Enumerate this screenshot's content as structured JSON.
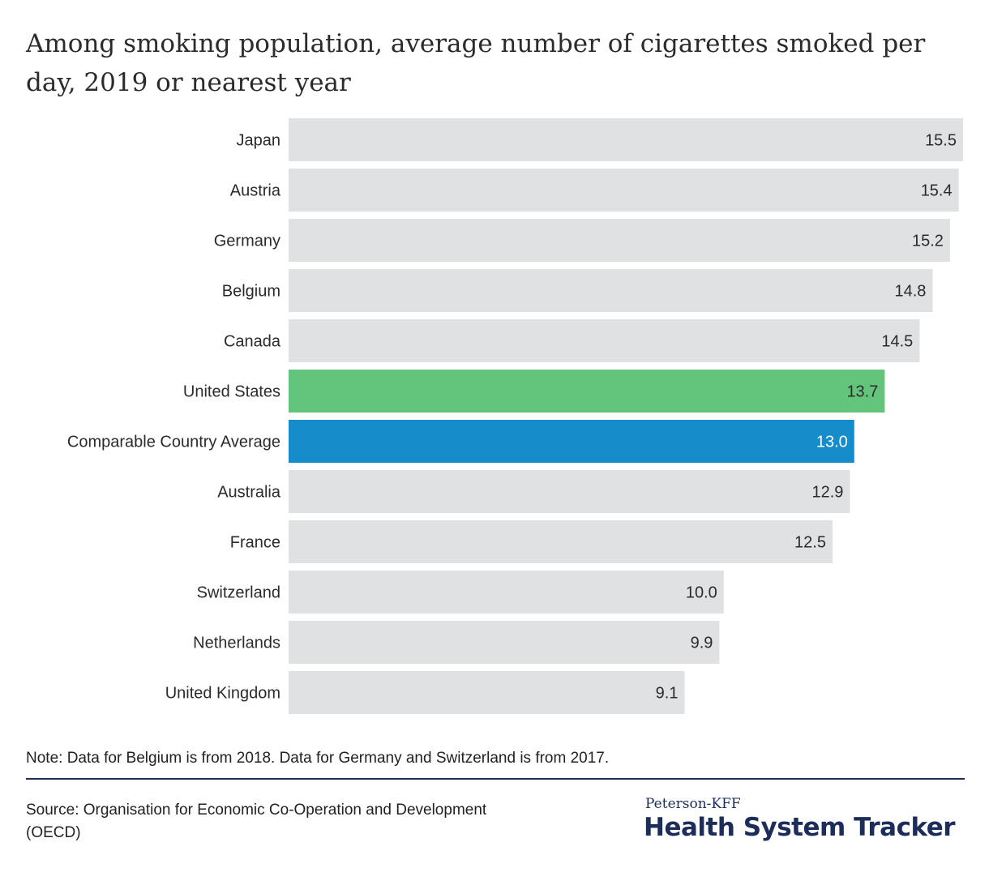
{
  "title": "Among smoking population, average number of cigarettes smoked per day, 2019 or nearest year",
  "note": "Note: Data for Belgium is from 2018. Data for Germany and Switzerland is from 2017.",
  "source": "Source: Organisation for Economic Co-Operation and Development (OECD)",
  "logo": {
    "top": "Peterson-KFF",
    "main": "Health System Tracker"
  },
  "colors": {
    "default_bar": "#dfe1e3",
    "us_bar": "#63c57b",
    "average_bar": "#168ccb",
    "label_text": "#2b2b2b",
    "value_text": "#2b2b2b",
    "value_text_on_dark": "#ffffff"
  },
  "chart_data": {
    "type": "bar",
    "orientation": "horizontal",
    "categories": [
      "Japan",
      "Austria",
      "Germany",
      "Belgium",
      "Canada",
      "United States",
      "Comparable Country Average",
      "Australia",
      "France",
      "Switzerland",
      "Netherlands",
      "United Kingdom"
    ],
    "values": [
      15.5,
      15.4,
      15.2,
      14.8,
      14.5,
      13.7,
      13.0,
      12.9,
      12.5,
      10.0,
      9.9,
      9.1
    ],
    "value_labels": [
      "15.5",
      "15.4",
      "15.2",
      "14.8",
      "14.5",
      "13.7",
      "13.0",
      "12.9",
      "12.5",
      "10.0",
      "9.9",
      "9.1"
    ],
    "highlight": {
      "United States": "us_bar",
      "Comparable Country Average": "average_bar"
    },
    "xlim": [
      0,
      15.5
    ],
    "grid": false,
    "legend": "none"
  }
}
